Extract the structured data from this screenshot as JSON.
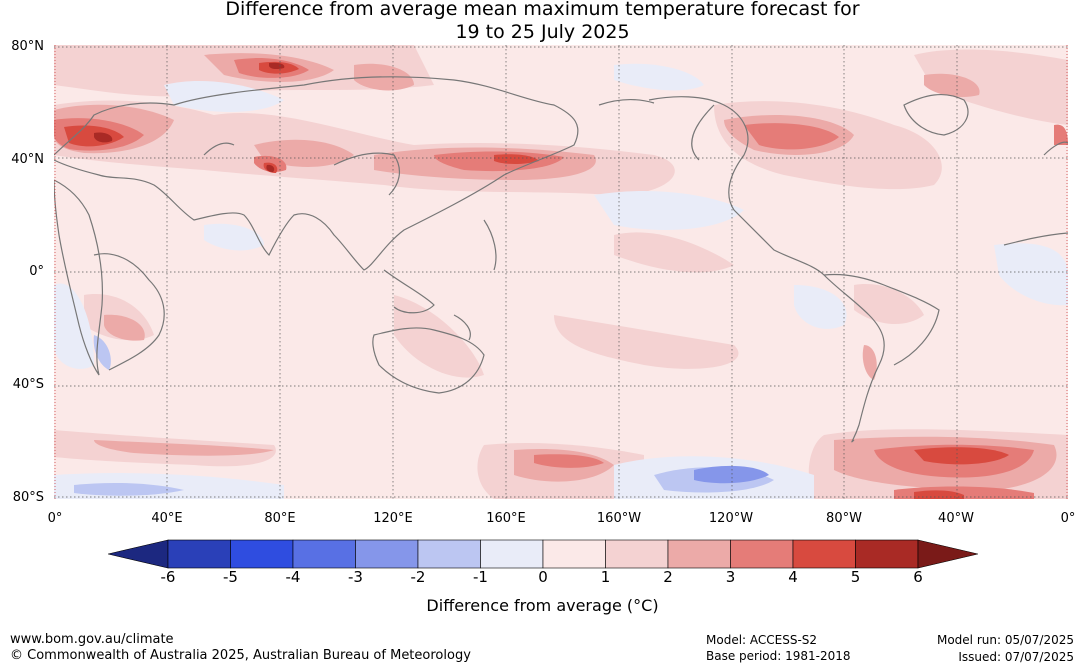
{
  "title": {
    "line1": "Difference from average mean maximum temperature forecast for",
    "line2": "19 to 25 July 2025"
  },
  "map": {
    "lat_labels": [
      "80°N",
      "40°N",
      "0°",
      "40°S",
      "80°S"
    ],
    "lon_labels": [
      "0°",
      "40°E",
      "80°E",
      "120°E",
      "160°E",
      "160°W",
      "120°W",
      "80°W",
      "40°W",
      "0°"
    ],
    "coastline_color": "#777777"
  },
  "colorbar": {
    "ticks": [
      "-6",
      "-5",
      "-4",
      "-3",
      "-2",
      "-1",
      "0",
      "1",
      "2",
      "3",
      "4",
      "5",
      "6"
    ],
    "colors": [
      "#1c2880",
      "#2a40b8",
      "#2f4de0",
      "#5870e4",
      "#8596ea",
      "#bcc6f2",
      "#e9ecf8",
      "#fbe9e8",
      "#f4d2d2",
      "#ecaaa8",
      "#e57c78",
      "#d84a3f",
      "#a92a25",
      "#7a1a18"
    ],
    "label": "Difference from average (°C)"
  },
  "footer": {
    "website": "www.bom.gov.au/climate",
    "copyright": "© Commonwealth of Australia 2025, Australian Bureau of Meteorology",
    "model": "Model: ACCESS-S2",
    "base_period": "Base period: 1981-2018",
    "model_run": "Model run: 05/07/2025",
    "issued": "Issued: 07/07/2025"
  }
}
